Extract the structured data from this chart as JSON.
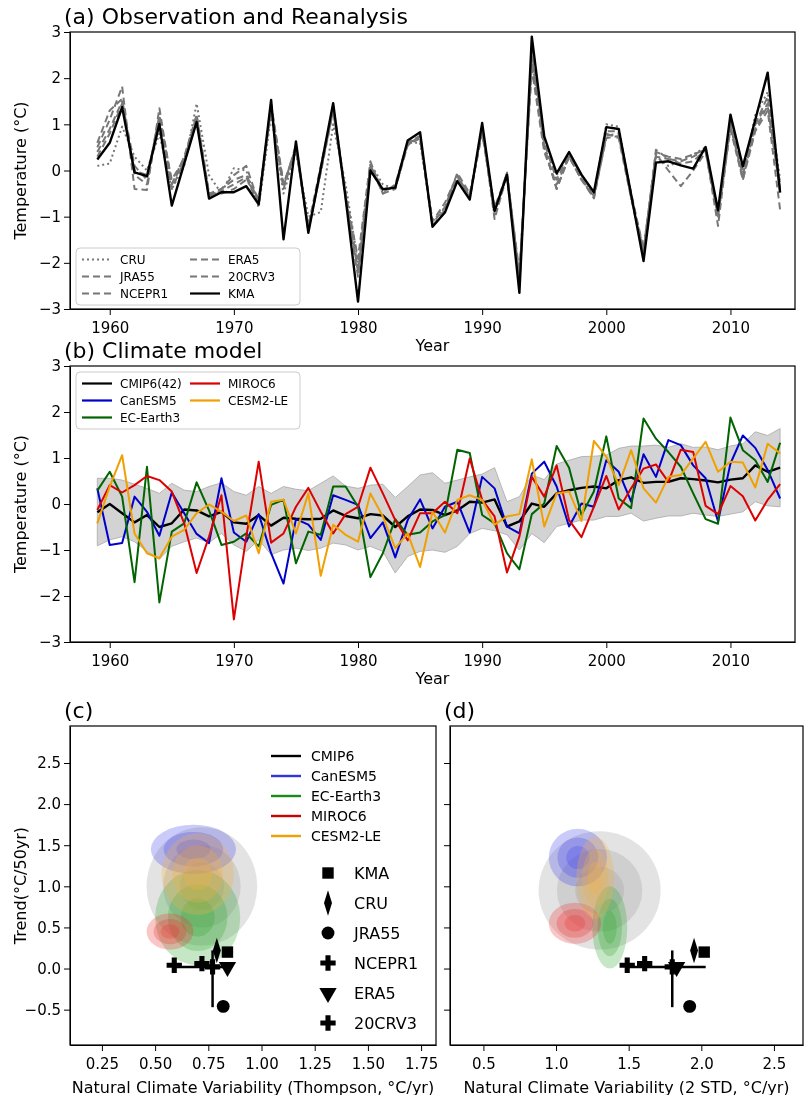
{
  "chart_data": [
    {
      "type": "line",
      "title": "(a) Observation and Reanalysis",
      "xlabel": "Year",
      "ylabel": "Temperature (°C)",
      "legend": "bottom left",
      "x": [
        1959,
        1960,
        1961,
        1962,
        1963,
        1964,
        1965,
        1966,
        1967,
        1968,
        1969,
        1970,
        1971,
        1972,
        1973,
        1974,
        1975,
        1976,
        1977,
        1978,
        1979,
        1980,
        1981,
        1982,
        1983,
        1984,
        1985,
        1986,
        1987,
        1988,
        1989,
        1990,
        1991,
        1992,
        1993,
        1994,
        1995,
        1996,
        1997,
        1998,
        1999,
        2000,
        2001,
        2002,
        2003,
        2004,
        2005,
        2006,
        2007,
        2008,
        2009,
        2010,
        2011,
        2012,
        2013,
        2014
      ],
      "xlim": [
        1956.8,
        2015.2
      ],
      "xticks": [
        1960,
        1970,
        1980,
        1990,
        2000,
        2010
      ],
      "ylim": [
        -3,
        3
      ],
      "yticks": [
        {
          "value": -3,
          "label": "−3"
        },
        {
          "value": -2,
          "label": "−2"
        },
        {
          "value": -1,
          "label": "−1"
        },
        0,
        1,
        2,
        3
      ],
      "series": [
        {
          "name": "CRU",
          "color": "#777777",
          "line_style": "dotted",
          "values": [
            0.1,
            0.15,
            0.95,
            0.3,
            0.0,
            0.8,
            -0.4,
            0.1,
            1.45,
            -0.1,
            -0.5,
            0.05,
            0.0,
            -0.8,
            1.2,
            -0.5,
            0.4,
            -1.0,
            -0.9,
            1.0,
            -0.3,
            -2.0,
            0.15,
            -0.3,
            -0.4,
            0.6,
            0.6,
            -1.1,
            -0.8,
            -0.1,
            -0.6,
            0.9,
            -1.0,
            -0.1,
            -2.3,
            2.4,
            0.5,
            -0.1,
            0.35,
            -0.2,
            -0.55,
            1.0,
            0.95,
            -0.6,
            -1.7,
            0.3,
            0.1,
            0.2,
            0.35,
            0.5,
            -0.9,
            1.0,
            -0.1,
            1.2,
            1.7,
            -0.2
          ]
        },
        {
          "name": "JRA55",
          "color": "#777777",
          "line_style": "dashed",
          "values": [
            0.5,
            1.1,
            1.82,
            -0.4,
            -0.42,
            1.35,
            -0.3,
            0.3,
            1.2,
            -0.5,
            -0.5,
            -0.4,
            -0.2,
            -0.6,
            1.3,
            -0.4,
            0.5,
            -1.3,
            0.0,
            1.3,
            -0.5,
            -2.2,
            0.1,
            -0.5,
            -0.4,
            0.55,
            0.7,
            -1.1,
            -0.7,
            -0.1,
            -0.6,
            0.85,
            -0.8,
            -0.1,
            -2.2,
            2.2,
            0.4,
            -0.3,
            0.3,
            -0.2,
            -0.6,
            0.75,
            0.8,
            -0.5,
            -1.7,
            0.35,
            0.0,
            -0.34,
            0.0,
            0.4,
            -1.0,
            0.9,
            -0.2,
            0.85,
            1.3,
            -0.85
          ]
        },
        {
          "name": "NCEPR1",
          "color": "#777777",
          "line_style": "dashed",
          "values": [
            0.6,
            1.3,
            1.55,
            -0.1,
            -0.3,
            1.1,
            -0.2,
            0.25,
            1.15,
            -0.55,
            -0.4,
            -0.2,
            -0.1,
            -0.65,
            1.4,
            -0.3,
            0.45,
            -1.2,
            0.1,
            1.35,
            -0.55,
            -2.1,
            0.05,
            -0.45,
            -0.35,
            0.6,
            0.75,
            -1.15,
            -0.8,
            -0.05,
            -0.5,
            0.8,
            -0.85,
            -0.05,
            -2.3,
            2.3,
            0.5,
            -0.4,
            0.3,
            -0.2,
            -0.55,
            0.7,
            0.75,
            -0.55,
            -1.75,
            0.4,
            0.3,
            0.25,
            0.35,
            0.45,
            -0.9,
            0.95,
            -0.1,
            0.9,
            1.4,
            -0.4
          ]
        },
        {
          "name": "ERA5",
          "color": "#777777",
          "line_style": "dashed",
          "values": [
            0.4,
            0.9,
            1.5,
            0.1,
            -0.2,
            1.2,
            -0.3,
            0.2,
            1.2,
            -0.5,
            -0.4,
            -0.1,
            0.1,
            -0.7,
            1.45,
            -0.3,
            0.5,
            -1.3,
            0.0,
            1.4,
            -0.5,
            -1.9,
            0.2,
            -0.5,
            -0.3,
            0.6,
            0.7,
            -1.2,
            -0.9,
            -0.1,
            -0.6,
            0.95,
            -1.05,
            -0.1,
            -2.4,
            2.5,
            0.5,
            -0.4,
            0.3,
            -0.15,
            -0.6,
            0.8,
            0.7,
            -0.6,
            -1.8,
            0.45,
            0.25,
            0.2,
            0.3,
            0.45,
            -1.2,
            1.0,
            -0.2,
            1.0,
            1.45,
            -0.45
          ]
        },
        {
          "name": "20CRV3",
          "color": "#777777",
          "line_style": "dashed",
          "values": [
            0.3,
            0.8,
            1.45,
            0.0,
            -0.1,
            1.0,
            -0.4,
            0.2,
            1.1,
            -0.55,
            -0.45,
            -0.3,
            -0.15,
            -0.75,
            1.35,
            -0.35,
            0.55,
            -1.25,
            -0.05,
            1.3,
            -0.6,
            -2.3,
            0.1,
            -0.4,
            -0.35,
            0.55,
            0.75,
            -1.2,
            -0.85,
            -0.15,
            -0.55,
            0.9,
            -0.9,
            -0.05,
            -2.5,
            2.6,
            0.6,
            -0.2,
            0.35,
            -0.1,
            -0.5,
            0.85,
            0.85,
            -0.5,
            -1.8,
            0.3,
            0.25,
            0.15,
            0.2,
            0.45,
            -0.95,
            1.1,
            0.0,
            1.0,
            1.6,
            -0.3
          ]
        },
        {
          "name": "KMA",
          "color": "#000000",
          "line_style": "solid",
          "values": [
            0.24,
            0.6,
            1.37,
            -0.04,
            -0.12,
            1.01,
            -0.76,
            0.15,
            1.05,
            -0.61,
            -0.47,
            -0.47,
            -0.34,
            -0.73,
            1.53,
            -1.49,
            0.63,
            -1.35,
            0.05,
            1.46,
            -0.6,
            -2.84,
            0.0,
            -0.41,
            -0.37,
            0.65,
            0.83,
            -1.22,
            -0.91,
            -0.23,
            -0.63,
            1.03,
            -0.88,
            -0.09,
            -2.65,
            2.9,
            0.74,
            -0.06,
            0.4,
            -0.09,
            -0.47,
            0.94,
            0.9,
            -0.52,
            -1.96,
            0.17,
            0.2,
            0.11,
            0.04,
            0.51,
            -0.86,
            1.21,
            0.09,
            1.1,
            2.12,
            -0.48
          ]
        }
      ]
    },
    {
      "type": "line",
      "title": "(b) Climate model",
      "xlabel": "Year",
      "ylabel": "Temperature (°C)",
      "legend": "top left",
      "x": [
        1959,
        1960,
        1961,
        1962,
        1963,
        1964,
        1965,
        1966,
        1967,
        1968,
        1969,
        1970,
        1971,
        1972,
        1973,
        1974,
        1975,
        1976,
        1977,
        1978,
        1979,
        1980,
        1981,
        1982,
        1983,
        1984,
        1985,
        1986,
        1987,
        1988,
        1989,
        1990,
        1991,
        1992,
        1993,
        1994,
        1995,
        1996,
        1997,
        1998,
        1999,
        2000,
        2001,
        2002,
        2003,
        2004,
        2005,
        2006,
        2007,
        2008,
        2009,
        2010,
        2011,
        2012,
        2013,
        2014
      ],
      "xlim": [
        1956.8,
        2015.2
      ],
      "xticks": [
        1960,
        1970,
        1980,
        1990,
        2000,
        2010
      ],
      "ylim": [
        -3,
        3
      ],
      "yticks": [
        {
          "value": -3,
          "label": "−3"
        },
        {
          "value": -2,
          "label": "−2"
        },
        {
          "value": -1,
          "label": "−1"
        },
        0,
        1,
        2,
        3
      ],
      "series": [
        {
          "name": "CMIP6(42)",
          "color": "#000000",
          "values": [
            -0.18,
            0.0,
            -0.2,
            -0.4,
            -0.24,
            -0.5,
            -0.42,
            -0.12,
            -0.14,
            -0.27,
            -0.17,
            -0.4,
            -0.43,
            -0.24,
            -0.47,
            -0.3,
            -0.32,
            -0.33,
            -0.32,
            -0.14,
            -0.26,
            -0.31,
            -0.22,
            -0.25,
            -0.5,
            -0.27,
            -0.12,
            -0.13,
            -0.24,
            -0.14,
            0.05,
            0.03,
            0.1,
            -0.49,
            -0.38,
            0.01,
            -0.06,
            0.23,
            0.3,
            0.35,
            0.38,
            0.34,
            0.52,
            0.58,
            0.46,
            0.48,
            0.48,
            0.56,
            0.54,
            0.51,
            0.47,
            0.53,
            0.56,
            0.84,
            0.7,
            0.79
          ],
          "lower": [
            -0.91,
            -0.78,
            -0.71,
            -0.82,
            -1.03,
            -1.2,
            -0.92,
            -0.82,
            -0.74,
            -0.84,
            -0.64,
            -0.89,
            -1.03,
            -0.78,
            -1.1,
            -1.0,
            -0.96,
            -1.01,
            -0.96,
            -0.85,
            -0.89,
            -1.0,
            -0.92,
            -1.03,
            -1.5,
            -1.14,
            -1.03,
            -1.0,
            -1.05,
            -0.92,
            -0.64,
            -0.53,
            -0.58,
            -0.67,
            -1.0,
            -0.64,
            -0.84,
            -0.49,
            -0.42,
            -0.35,
            -0.35,
            -0.27,
            -0.27,
            -0.2,
            -0.37,
            -0.31,
            -0.26,
            -0.26,
            -0.2,
            -0.24,
            -0.27,
            -0.22,
            -0.17,
            0.05,
            -0.04,
            -0.06
          ],
          "upper": [
            0.56,
            0.56,
            0.52,
            0.43,
            0.34,
            0.23,
            0.45,
            0.3,
            0.27,
            0.38,
            0.46,
            0.27,
            0.19,
            0.38,
            0.23,
            0.38,
            0.32,
            0.29,
            0.45,
            0.61,
            0.39,
            0.34,
            0.41,
            0.43,
            0.14,
            0.38,
            0.63,
            0.68,
            0.45,
            0.52,
            0.59,
            0.65,
            0.79,
            0.05,
            0.16,
            0.63,
            0.53,
            0.87,
            0.95,
            1.03,
            1.04,
            1.06,
            1.21,
            1.26,
            1.26,
            1.28,
            1.23,
            1.31,
            1.23,
            1.24,
            1.18,
            1.26,
            1.31,
            1.57,
            1.49,
            1.64
          ]
        },
        {
          "name": "CanESM5",
          "color": "#0000cc",
          "values": [
            0.34,
            -0.89,
            -0.85,
            0.16,
            -0.17,
            -0.69,
            0.25,
            -0.2,
            -0.65,
            -0.85,
            0.56,
            -0.62,
            -0.82,
            -0.22,
            -1.07,
            -1.73,
            -0.33,
            -0.45,
            -0.78,
            0.19,
            0.09,
            -0.02,
            -0.74,
            -0.4,
            -1.16,
            -0.35,
            0.1,
            -0.53,
            -0.06,
            0.05,
            -0.62,
            0.59,
            0.34,
            -0.49,
            -0.64,
            0.66,
            0.92,
            0.38,
            -0.49,
            0.01,
            -0.06,
            0.95,
            0.7,
            0.05,
            1.08,
            0.59,
            1.39,
            1.28,
            0.84,
            0.56,
            -0.38,
            0.88,
            1.49,
            1.22,
            0.74,
            0.12
          ]
        },
        {
          "name": "EC-Earth3",
          "color": "#006400",
          "values": [
            0.29,
            0.7,
            0.16,
            -1.7,
            0.81,
            -2.14,
            -0.6,
            -0.42,
            0.47,
            -0.14,
            -0.89,
            -0.82,
            -0.64,
            -0.92,
            -0.02,
            0.09,
            -1.29,
            -0.6,
            -0.67,
            0.38,
            0.38,
            -0.06,
            -1.59,
            -1.07,
            -0.33,
            -0.67,
            -0.62,
            -0.38,
            -0.24,
            1.18,
            1.11,
            -0.24,
            -0.42,
            -1.07,
            -1.42,
            -0.22,
            0.01,
            1.26,
            0.79,
            -0.24,
            0.27,
            1.47,
            0.12,
            -0.09,
            1.86,
            1.42,
            1.13,
            0.81,
            0.23,
            -0.33,
            -0.43,
            1.88,
            1.17,
            0.95,
            0.48,
            1.33
          ]
        },
        {
          "name": "MIROC6",
          "color": "#dd0000",
          "values": [
            -0.13,
            0.41,
            0.25,
            0.41,
            0.61,
            0.52,
            0.27,
            -0.42,
            -1.5,
            -0.71,
            0.19,
            -2.51,
            -0.71,
            0.92,
            -0.84,
            -0.64,
            -0.06,
            0.35,
            -0.17,
            -0.64,
            -0.22,
            -0.06,
            0.79,
            0.23,
            -0.35,
            -0.79,
            -0.2,
            -0.2,
            0.05,
            -0.2,
            0.99,
            0.09,
            -0.27,
            -1.49,
            -0.71,
            0.59,
            0.16,
            0.84,
            -0.35,
            -0.72,
            -0.06,
            0.61,
            -0.12,
            0.34,
            0.77,
            0.86,
            0.48,
            1.18,
            1.13,
            -0.04,
            -0.22,
            0.39,
            0.17,
            -0.36,
            0.09,
            0.43
          ]
        },
        {
          "name": "CESM2-LE",
          "color": "#f0a000",
          "values": [
            -0.42,
            0.38,
            1.06,
            -0.64,
            -1.07,
            -1.18,
            -0.71,
            -0.56,
            -0.2,
            -0.01,
            -0.17,
            -0.37,
            -0.25,
            -1.07,
            0.05,
            0.09,
            -0.64,
            0.23,
            -1.56,
            -0.45,
            -0.67,
            -0.82,
            0.23,
            -0.27,
            -0.96,
            -0.64,
            -1.37,
            -0.17,
            -0.62,
            0.09,
            0.19,
            0.09,
            -0.45,
            -0.27,
            -0.22,
            0.97,
            -0.49,
            0.23,
            0.27,
            -0.37,
            1.37,
            1.03,
            0.41,
            1.17,
            0.34,
            0.03,
            0.59,
            0.63,
            0.99,
            1.35,
            0.7,
            0.92,
            0.9,
            0.36,
            1.31,
            1.1
          ]
        }
      ]
    },
    {
      "type": "scatter",
      "title": "(c)",
      "xlabel": "Natural Climate Variability (Thompson, °C/yr)",
      "ylabel": "Trend(°C/50yr)",
      "legend": "bottom right",
      "annotations": [
        "CMIP6",
        "CanESM5",
        "EC-Earth3",
        "MIROC6",
        "CESM2-LE"
      ],
      "xlim": [
        0.1,
        1.82
      ],
      "xticks": [
        {
          "value": 0.25,
          "label": "0.25"
        },
        {
          "value": 0.5,
          "label": "0.50"
        },
        {
          "value": 0.75,
          "label": "0.75"
        },
        {
          "value": 1,
          "label": "1.00"
        },
        {
          "value": 1.25,
          "label": "1.25"
        },
        {
          "value": 1.5,
          "label": "1.50"
        },
        {
          "value": 1.75,
          "label": "1.75"
        }
      ],
      "ylim": [
        -0.93,
        2.95
      ],
      "yticks": [
        {
          "value": -0.5,
          "label": "−0.5"
        },
        {
          "value": 0,
          "label": "0.0"
        },
        {
          "value": 0.5,
          "label": "0.5"
        },
        {
          "value": 1,
          "label": "1.0"
        },
        {
          "value": 1.5,
          "label": "1.5"
        },
        {
          "value": 2,
          "label": "2.0"
        },
        {
          "value": 2.5,
          "label": "2.5"
        }
      ],
      "series": [
        {
          "name": "KMA",
          "color": "#000000",
          "marker": "square",
          "x": [
            0.84
          ],
          "values": [
            0.2
          ]
        },
        {
          "name": "CRU",
          "color": "#000000",
          "marker": "diamond",
          "x": [
            0.79
          ],
          "values": [
            0.22
          ]
        },
        {
          "name": "JRA55",
          "color": "#000000",
          "marker": "circle",
          "x": [
            0.82
          ],
          "values": [
            -0.46
          ]
        },
        {
          "name": "NCEPR1",
          "color": "#000000",
          "marker": "cross",
          "x": [
            0.59
          ],
          "values": [
            0.04
          ]
        },
        {
          "name": "ERA5",
          "color": "#000000",
          "marker": "triangle",
          "x": [
            0.84
          ],
          "values": [
            0.02
          ]
        },
        {
          "name": "20CRV3",
          "color": "#000000",
          "marker": "cross",
          "x": [
            0.72
          ],
          "values": [
            0.06
          ]
        },
        {
          "color": "#000000",
          "marker": "cross",
          "x": [
            0.77
          ],
          "values": [
            0.02
          ],
          "errors": [
            [
              -0.47,
              0.22
            ]
          ],
          "xerrors": [
            [
              0.59,
              0.86
            ]
          ]
        }
      ]
    },
    {
      "type": "scatter",
      "title": "(d)",
      "xlabel": "Natural Climate Variability (2 STD, °C/yr)",
      "tick_labels": "x",
      "xlim": [
        0.27,
        2.7
      ],
      "xticks": [
        {
          "value": 0.5,
          "label": "0.5"
        },
        {
          "value": 1,
          "label": "1.0"
        },
        {
          "value": 1.5,
          "label": "1.5"
        },
        {
          "value": 2,
          "label": "2.0"
        },
        {
          "value": 2.5,
          "label": "2.5"
        }
      ],
      "ylim": [
        -0.93,
        2.95
      ],
      "yticks": [
        {
          "value": -0.5,
          "label": null
        },
        {
          "value": 0,
          "label": null
        },
        {
          "value": 0.5,
          "label": null
        },
        {
          "value": 1,
          "label": null
        },
        {
          "value": 1.5,
          "label": null
        },
        {
          "value": 2,
          "label": null
        },
        {
          "value": 2.5,
          "label": null
        }
      ],
      "series": [
        {
          "color": "#000000",
          "marker": "square",
          "x": [
            2.02
          ],
          "values": [
            0.2
          ]
        },
        {
          "color": "#000000",
          "marker": "diamond",
          "x": [
            1.95
          ],
          "values": [
            0.22
          ]
        },
        {
          "color": "#000000",
          "marker": "circle",
          "x": [
            1.92
          ],
          "values": [
            -0.46
          ]
        },
        {
          "color": "#000000",
          "marker": "cross",
          "x": [
            1.49
          ],
          "values": [
            0.04
          ]
        },
        {
          "color": "#000000",
          "marker": "triangle",
          "x": [
            1.83
          ],
          "values": [
            0.02
          ]
        },
        {
          "color": "#000000",
          "marker": "cross",
          "x": [
            1.61
          ],
          "values": [
            0.06
          ]
        },
        {
          "color": "#000000",
          "marker": "cross",
          "x": [
            1.8
          ],
          "values": [
            0.02
          ],
          "errors": [
            [
              -0.47,
              0.22
            ]
          ],
          "xerrors": [
            [
              1.49,
              2.03
            ]
          ]
        }
      ]
    }
  ]
}
